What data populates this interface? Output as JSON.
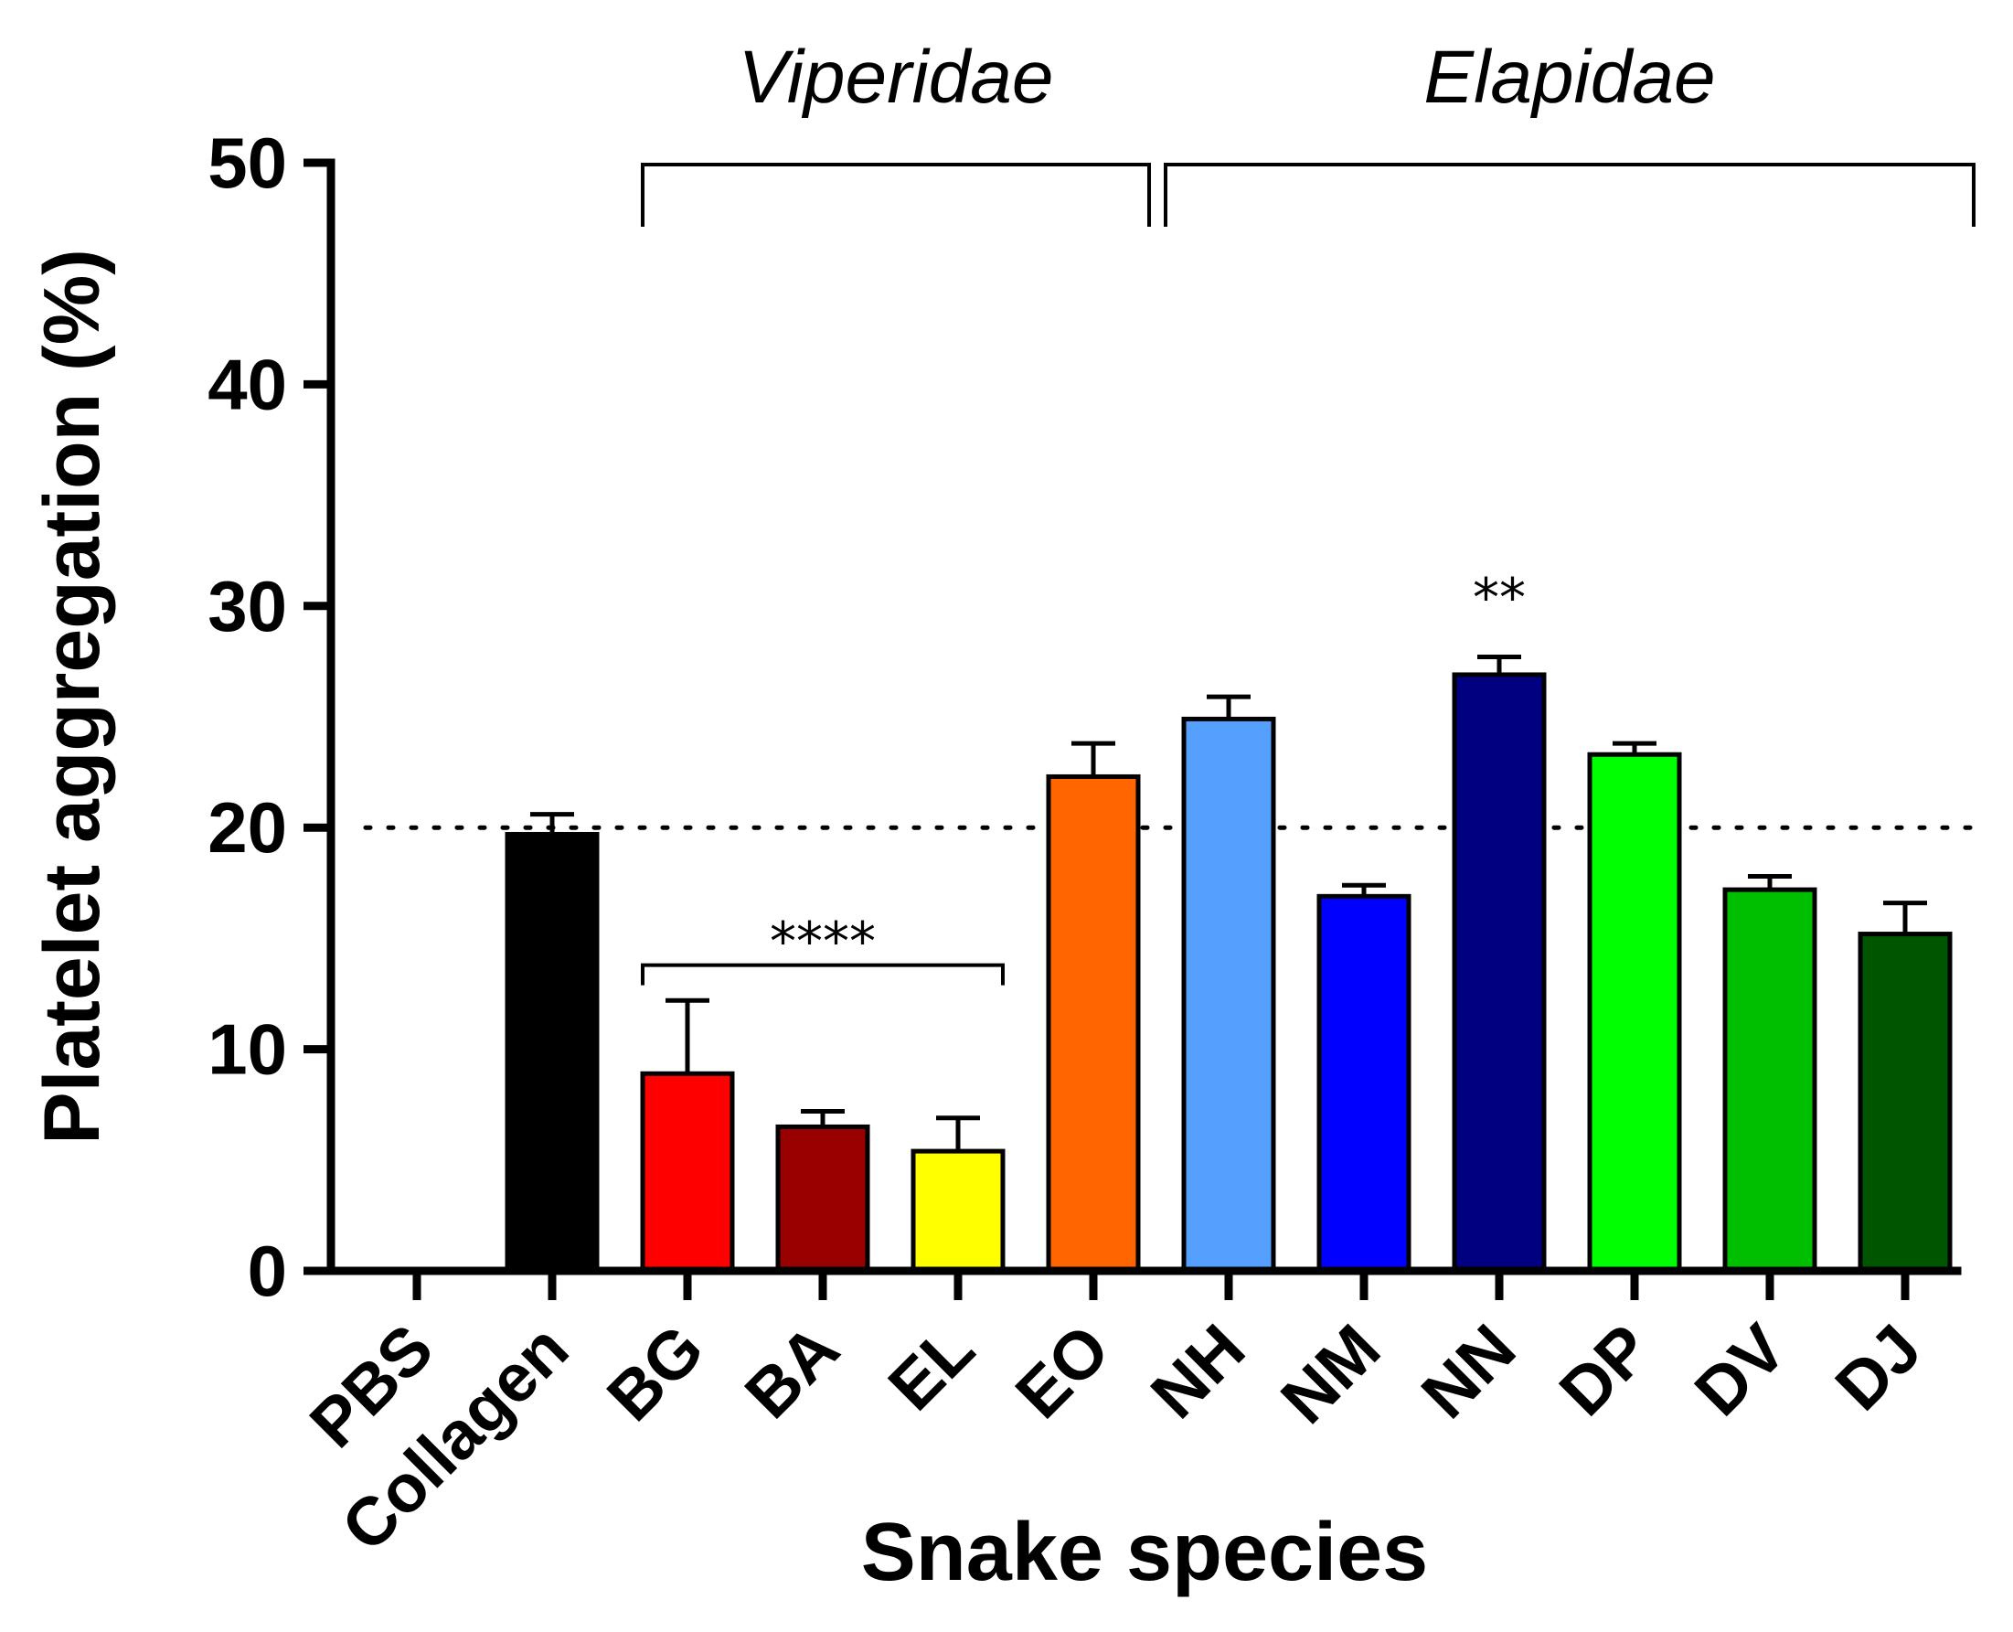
{
  "chart_data": {
    "type": "bar",
    "ylabel": "Platelet aggregation (%)",
    "xlabel": "Snake species",
    "ylim": [
      0,
      50
    ],
    "yticks": [
      0,
      10,
      20,
      30,
      40,
      50
    ],
    "grid": false,
    "categories": [
      "PBS",
      "Collagen",
      "BG",
      "BA",
      "EL",
      "EO",
      "NH",
      "NM",
      "NN",
      "DP",
      "DV",
      "DJ"
    ],
    "values": [
      0,
      19.7,
      8.9,
      6.5,
      5.4,
      22.3,
      24.9,
      16.9,
      26.9,
      23.3,
      17.2,
      15.2
    ],
    "errors": [
      0,
      0.9,
      3.3,
      0.7,
      1.5,
      1.5,
      1.0,
      0.5,
      0.8,
      0.5,
      0.6,
      1.4
    ],
    "colors": [
      "#000000",
      "#000000",
      "#ff0000",
      "#990000",
      "#ffff00",
      "#ff6600",
      "#55a0ff",
      "#0000ff",
      "#000080",
      "#00ff00",
      "#00bf00",
      "#005500"
    ],
    "reference_line": {
      "y": 20,
      "style": "dotted"
    },
    "groups": [
      {
        "label": "Viperidae",
        "from": "BG",
        "to": "EO"
      },
      {
        "label": "Elapidae",
        "from": "NH",
        "to": "DJ"
      }
    ],
    "annotations": [
      {
        "text": "****",
        "from": "BG",
        "to": "EL",
        "y": 14
      },
      {
        "text": "**",
        "at": "NN"
      }
    ]
  }
}
